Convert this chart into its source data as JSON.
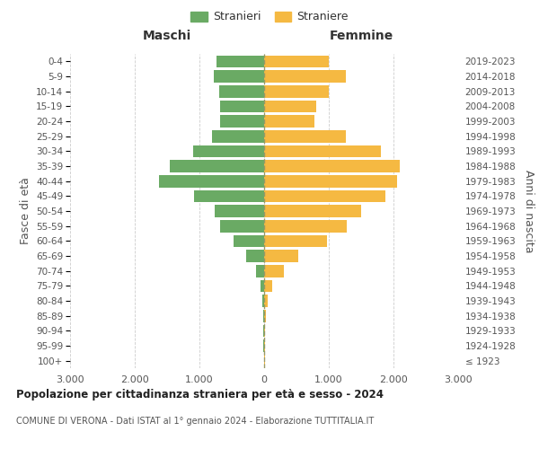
{
  "age_groups": [
    "100+",
    "95-99",
    "90-94",
    "85-89",
    "80-84",
    "75-79",
    "70-74",
    "65-69",
    "60-64",
    "55-59",
    "50-54",
    "45-49",
    "40-44",
    "35-39",
    "30-34",
    "25-29",
    "20-24",
    "15-19",
    "10-14",
    "5-9",
    "0-4"
  ],
  "birth_years": [
    "≤ 1923",
    "1924-1928",
    "1929-1933",
    "1934-1938",
    "1939-1943",
    "1944-1948",
    "1949-1953",
    "1954-1958",
    "1959-1963",
    "1964-1968",
    "1969-1973",
    "1974-1978",
    "1979-1983",
    "1984-1988",
    "1989-1993",
    "1994-1998",
    "1999-2003",
    "2004-2008",
    "2009-2013",
    "2014-2018",
    "2019-2023"
  ],
  "maschi": [
    5,
    8,
    10,
    15,
    30,
    60,
    130,
    280,
    470,
    680,
    770,
    1080,
    1630,
    1460,
    1100,
    800,
    680,
    680,
    700,
    780,
    730
  ],
  "femmine": [
    10,
    10,
    15,
    30,
    60,
    130,
    300,
    530,
    970,
    1280,
    1500,
    1870,
    2050,
    2100,
    1810,
    1270,
    780,
    800,
    1000,
    1270,
    1000
  ],
  "color_maschi": "#6aaa64",
  "color_femmine": "#f5b942",
  "title": "Popolazione per cittadinanza straniera per età e sesso - 2024",
  "subtitle": "COMUNE DI VERONA - Dati ISTAT al 1° gennaio 2024 - Elaborazione TUTTITALIA.IT",
  "ylabel_left": "Fasce di età",
  "ylabel_right": "Anni di nascita",
  "xlabel_maschi": "Maschi",
  "xlabel_femmine": "Femmine",
  "legend_maschi": "Stranieri",
  "legend_femmine": "Straniere",
  "xlim": 3000,
  "background_color": "#ffffff",
  "grid_color": "#cccccc"
}
